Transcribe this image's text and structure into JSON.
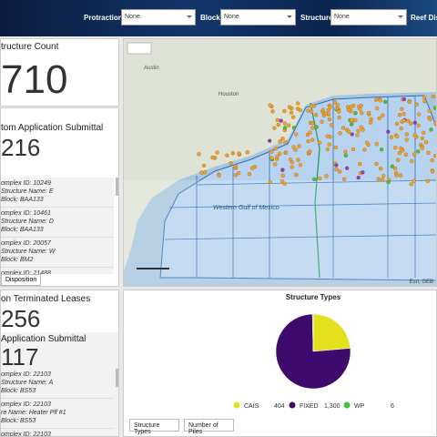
{
  "header": {
    "filters": [
      {
        "label": "Protraction:",
        "value": "None"
      },
      {
        "label": "Block:",
        "value": "None"
      },
      {
        "label": "Structure:",
        "value": "None"
      },
      {
        "label": "Reef Dist"
      }
    ]
  },
  "count_panel": {
    "title": "tructure Count",
    "value": "710"
  },
  "submittal_panel": {
    "title": "tom Application Submittal",
    "value": "216",
    "items": [
      [
        "omplex ID: 10249",
        "Structure Name: E",
        "Block: BAA133"
      ],
      [
        "omplex ID: 10461",
        "Structure Name: D",
        "Block: BAA133"
      ],
      [
        "omplex ID: 20057",
        "Structure Name: W",
        "Block: BM2"
      ],
      [
        "omplex ID: 21488"
      ]
    ],
    "button": "Disposition"
  },
  "terminated_panel": {
    "title": "on Terminated Leases",
    "value": "256",
    "subtitle": "Application Submittal",
    "subvalue": "117",
    "items": [
      [
        "omplex ID: 22103",
        "Structure Name: A",
        "Block: BS53"
      ],
      [
        "omplex ID: 22103",
        "re Name: Heater Plf #1",
        "Block: BS53"
      ],
      [
        "omplex ID: 22103"
      ]
    ]
  },
  "map": {
    "labels": [
      "Austin",
      "Houston",
      "Western Gulf of Mexico"
    ],
    "attribution": "Esri, GEB"
  },
  "chart_data": {
    "type": "pie",
    "title": "Structure Types",
    "categories": [
      "CAIS",
      "FIXED",
      "WP"
    ],
    "values": [
      404,
      1300,
      6
    ],
    "value_labels": [
      "404",
      "1,300",
      "6"
    ],
    "colors": [
      "#e3e01e",
      "#3f0a6e",
      "#3cc43c"
    ]
  },
  "tabs": [
    "Structure Types",
    "Number of Piles"
  ]
}
